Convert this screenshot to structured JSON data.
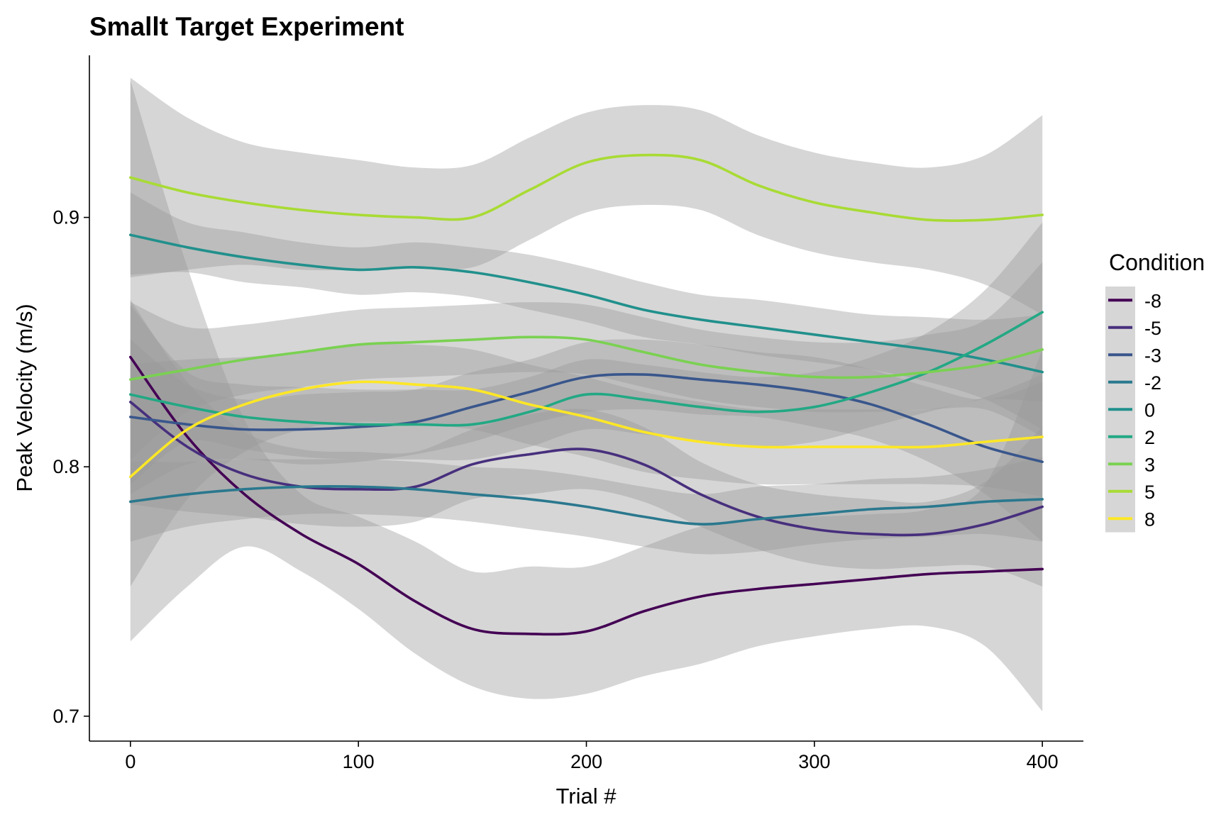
{
  "chart_data": {
    "type": "line",
    "title": "Smallt Target Experiment",
    "xlabel": "Trial #",
    "ylabel": "Peak Velocity (m/s)",
    "xlim": [
      -18,
      418
    ],
    "ylim": [
      0.69,
      0.965
    ],
    "x_ticks": [
      0,
      100,
      200,
      300,
      400
    ],
    "y_ticks": [
      0.7,
      0.8,
      0.9
    ],
    "y_tick_labels": [
      "0.7",
      "0.8",
      "0.9"
    ],
    "grid": false,
    "legend": {
      "title": "Condition",
      "position": "right"
    },
    "x": [
      0,
      25,
      50,
      75,
      100,
      125,
      150,
      175,
      200,
      225,
      250,
      275,
      300,
      325,
      350,
      375,
      400
    ],
    "series": [
      {
        "name": "-8",
        "color": "#440154",
        "values": [
          0.844,
          0.812,
          0.789,
          0.773,
          0.761,
          0.746,
          0.735,
          0.733,
          0.734,
          0.742,
          0.748,
          0.751,
          0.753,
          0.755,
          0.757,
          0.758,
          0.759
        ],
        "lower": [
          0.73,
          0.752,
          0.768,
          0.758,
          0.743,
          0.725,
          0.712,
          0.707,
          0.709,
          0.716,
          0.721,
          0.728,
          0.732,
          0.735,
          0.736,
          0.728,
          0.702
        ],
        "upper": [
          0.955,
          0.88,
          0.819,
          0.789,
          0.78,
          0.77,
          0.758,
          0.76,
          0.76,
          0.768,
          0.776,
          0.779,
          0.78,
          0.781,
          0.783,
          0.793,
          0.847
        ]
      },
      {
        "name": "-5",
        "color": "#472F7D",
        "values": [
          0.826,
          0.808,
          0.797,
          0.792,
          0.791,
          0.792,
          0.801,
          0.805,
          0.807,
          0.801,
          0.789,
          0.78,
          0.775,
          0.773,
          0.773,
          0.777,
          0.784
        ],
        "lower": [
          0.785,
          0.782,
          0.78,
          0.777,
          0.776,
          0.778,
          0.787,
          0.789,
          0.791,
          0.786,
          0.776,
          0.767,
          0.761,
          0.759,
          0.76,
          0.76,
          0.752
        ],
        "upper": [
          0.867,
          0.834,
          0.814,
          0.807,
          0.806,
          0.806,
          0.815,
          0.821,
          0.823,
          0.816,
          0.802,
          0.793,
          0.789,
          0.787,
          0.786,
          0.794,
          0.816
        ]
      },
      {
        "name": "-3",
        "color": "#39568C",
        "values": [
          0.82,
          0.817,
          0.815,
          0.815,
          0.816,
          0.818,
          0.824,
          0.83,
          0.836,
          0.837,
          0.835,
          0.833,
          0.83,
          0.825,
          0.817,
          0.808,
          0.802
        ],
        "lower": [
          0.789,
          0.801,
          0.803,
          0.801,
          0.802,
          0.805,
          0.81,
          0.817,
          0.822,
          0.823,
          0.821,
          0.82,
          0.816,
          0.811,
          0.802,
          0.789,
          0.77
        ],
        "upper": [
          0.851,
          0.833,
          0.827,
          0.829,
          0.83,
          0.831,
          0.838,
          0.843,
          0.85,
          0.851,
          0.849,
          0.846,
          0.844,
          0.839,
          0.832,
          0.827,
          0.834
        ]
      },
      {
        "name": "-2",
        "color": "#2A788E",
        "values": [
          0.786,
          0.789,
          0.791,
          0.792,
          0.792,
          0.791,
          0.789,
          0.787,
          0.784,
          0.78,
          0.777,
          0.779,
          0.781,
          0.783,
          0.784,
          0.786,
          0.787
        ],
        "lower": [
          0.77,
          0.776,
          0.779,
          0.781,
          0.781,
          0.78,
          0.778,
          0.775,
          0.772,
          0.768,
          0.765,
          0.766,
          0.769,
          0.771,
          0.772,
          0.773,
          0.77
        ],
        "upper": [
          0.802,
          0.802,
          0.803,
          0.803,
          0.803,
          0.802,
          0.8,
          0.799,
          0.796,
          0.792,
          0.789,
          0.792,
          0.793,
          0.795,
          0.796,
          0.799,
          0.804
        ]
      },
      {
        "name": "0",
        "color": "#21908C",
        "values": [
          0.893,
          0.888,
          0.884,
          0.881,
          0.879,
          0.88,
          0.878,
          0.874,
          0.869,
          0.863,
          0.859,
          0.856,
          0.853,
          0.85,
          0.847,
          0.843,
          0.838
        ],
        "lower": [
          0.877,
          0.878,
          0.874,
          0.872,
          0.869,
          0.87,
          0.868,
          0.863,
          0.858,
          0.852,
          0.849,
          0.845,
          0.842,
          0.839,
          0.834,
          0.827,
          0.815
        ],
        "upper": [
          0.91,
          0.898,
          0.894,
          0.89,
          0.888,
          0.89,
          0.888,
          0.885,
          0.88,
          0.874,
          0.869,
          0.867,
          0.864,
          0.861,
          0.86,
          0.859,
          0.861
        ]
      },
      {
        "name": "2",
        "color": "#22A884",
        "values": [
          0.829,
          0.824,
          0.82,
          0.818,
          0.817,
          0.817,
          0.817,
          0.822,
          0.829,
          0.827,
          0.824,
          0.822,
          0.824,
          0.83,
          0.838,
          0.849,
          0.862
        ],
        "lower": [
          0.793,
          0.81,
          0.807,
          0.804,
          0.803,
          0.803,
          0.803,
          0.808,
          0.815,
          0.813,
          0.81,
          0.808,
          0.81,
          0.816,
          0.822,
          0.827,
          0.826
        ],
        "upper": [
          0.865,
          0.838,
          0.833,
          0.832,
          0.831,
          0.831,
          0.831,
          0.836,
          0.843,
          0.841,
          0.838,
          0.836,
          0.838,
          0.844,
          0.854,
          0.871,
          0.898
        ]
      },
      {
        "name": "3",
        "color": "#7AD151",
        "values": [
          0.835,
          0.839,
          0.843,
          0.846,
          0.849,
          0.85,
          0.851,
          0.852,
          0.851,
          0.846,
          0.841,
          0.838,
          0.836,
          0.836,
          0.838,
          0.841,
          0.847
        ],
        "lower": [
          0.803,
          0.822,
          0.829,
          0.832,
          0.835,
          0.836,
          0.837,
          0.838,
          0.837,
          0.832,
          0.827,
          0.824,
          0.822,
          0.822,
          0.823,
          0.823,
          0.812
        ],
        "upper": [
          0.866,
          0.856,
          0.857,
          0.86,
          0.863,
          0.864,
          0.865,
          0.866,
          0.865,
          0.86,
          0.855,
          0.852,
          0.85,
          0.85,
          0.853,
          0.859,
          0.882
        ]
      },
      {
        "name": "5",
        "color": "#A8DB34",
        "values": [
          0.916,
          0.91,
          0.906,
          0.903,
          0.901,
          0.9,
          0.9,
          0.911,
          0.922,
          0.925,
          0.923,
          0.913,
          0.906,
          0.902,
          0.899,
          0.899,
          0.901
        ],
        "lower": [
          0.876,
          0.879,
          0.881,
          0.879,
          0.879,
          0.88,
          0.88,
          0.891,
          0.902,
          0.905,
          0.903,
          0.893,
          0.886,
          0.882,
          0.879,
          0.873,
          0.861
        ],
        "upper": [
          0.956,
          0.94,
          0.93,
          0.926,
          0.923,
          0.92,
          0.921,
          0.932,
          0.942,
          0.945,
          0.943,
          0.933,
          0.926,
          0.922,
          0.92,
          0.925,
          0.941
        ]
      },
      {
        "name": "8",
        "color": "#FDE725",
        "values": [
          0.796,
          0.815,
          0.825,
          0.831,
          0.834,
          0.833,
          0.831,
          0.825,
          0.82,
          0.814,
          0.81,
          0.808,
          0.808,
          0.808,
          0.808,
          0.81,
          0.812
        ],
        "lower": [
          0.752,
          0.787,
          0.806,
          0.815,
          0.818,
          0.817,
          0.815,
          0.809,
          0.804,
          0.798,
          0.795,
          0.793,
          0.793,
          0.793,
          0.793,
          0.792,
          0.788
        ],
        "upper": [
          0.841,
          0.843,
          0.844,
          0.846,
          0.849,
          0.849,
          0.847,
          0.841,
          0.836,
          0.83,
          0.826,
          0.823,
          0.823,
          0.823,
          0.823,
          0.828,
          0.837
        ]
      }
    ]
  }
}
